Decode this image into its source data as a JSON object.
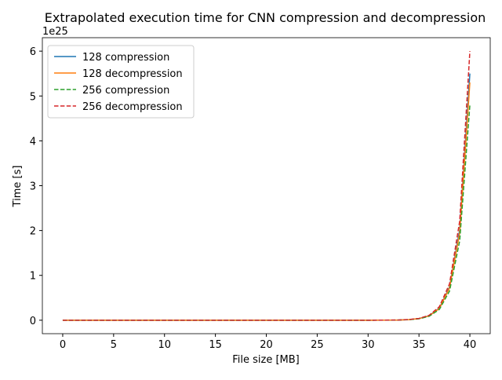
{
  "chart_data": {
    "type": "line",
    "title": "Extrapolated execution time for CNN compression and decompression",
    "x_label": "File size [MB]",
    "y_label": "Time [s]",
    "y_offset_label": "1e25",
    "x": [
      0,
      5,
      10,
      15,
      20,
      25,
      30,
      33,
      34,
      35,
      36,
      37,
      38,
      39,
      40
    ],
    "series": [
      {
        "name": "128 compression",
        "color": "#1f77b4",
        "dashed": false,
        "values": [
          0,
          0,
          0,
          0,
          0,
          0,
          0,
          0.005,
          0.014,
          0.037,
          0.1,
          0.27,
          0.74,
          2.02,
          5.5
        ]
      },
      {
        "name": "128 decompression",
        "color": "#ff7f0e",
        "dashed": false,
        "values": [
          0,
          0,
          0,
          0,
          0,
          0,
          0,
          0.005,
          0.013,
          0.036,
          0.097,
          0.26,
          0.72,
          1.95,
          5.3
        ]
      },
      {
        "name": "256 compression",
        "color": "#2ca02c",
        "dashed": true,
        "values": [
          0,
          0,
          0,
          0,
          0,
          0,
          0,
          0.004,
          0.012,
          0.032,
          0.088,
          0.24,
          0.65,
          1.77,
          4.8
        ]
      },
      {
        "name": "256 decompression",
        "color": "#d62728",
        "dashed": true,
        "values": [
          0,
          0,
          0,
          0,
          0,
          0,
          0,
          0.005,
          0.015,
          0.04,
          0.11,
          0.3,
          0.81,
          2.21,
          6.0
        ]
      }
    ],
    "xlim": [
      -2,
      42
    ],
    "xticks": [
      0,
      5,
      10,
      15,
      20,
      25,
      30,
      35,
      40
    ],
    "ylim": [
      -0.3,
      6.3
    ],
    "yticks": [
      0,
      1,
      2,
      3,
      4,
      5,
      6
    ],
    "legend": "upper left"
  }
}
